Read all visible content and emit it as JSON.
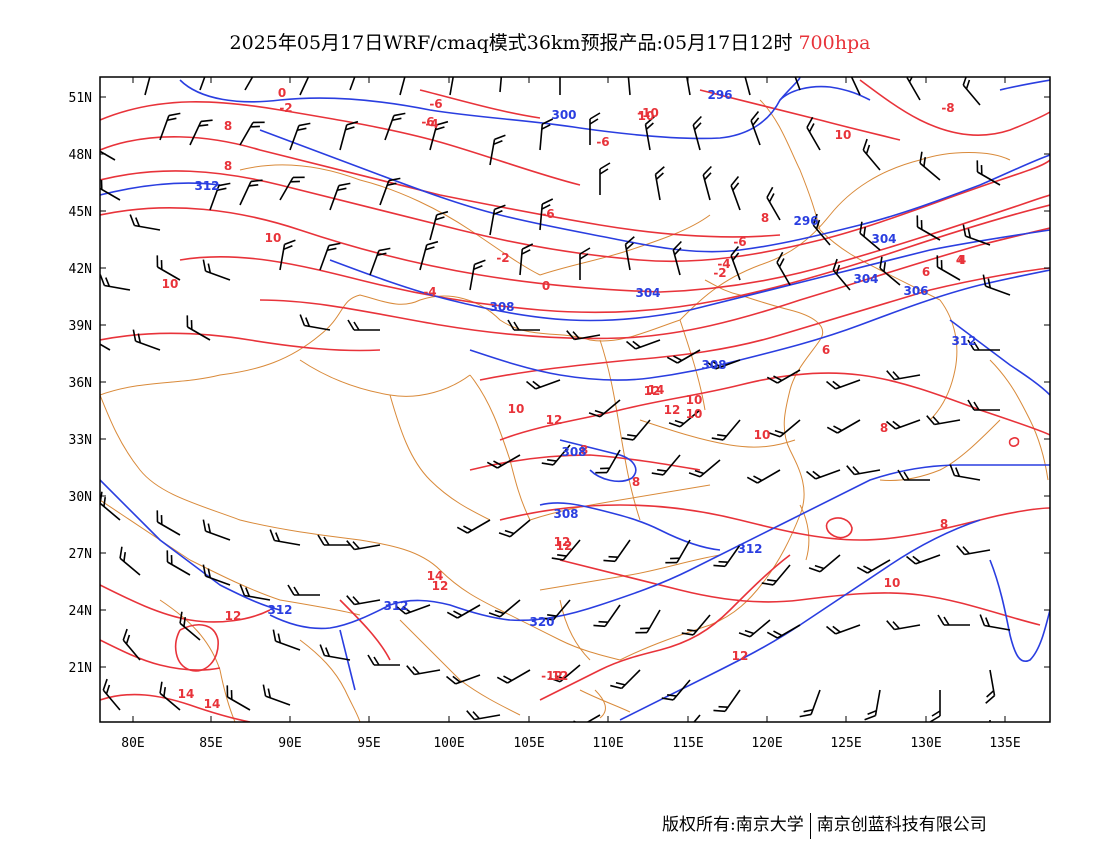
{
  "title": {
    "main": "2025年05月17日WRF/cmaq模式36km预报产品:05月17日12时",
    "level": "700hpa"
  },
  "axes": {
    "lat_labels": [
      "51N",
      "48N",
      "45N",
      "42N",
      "39N",
      "36N",
      "33N",
      "30N",
      "27N",
      "24N",
      "21N"
    ],
    "lon_labels": [
      "80E",
      "85E",
      "90E",
      "95E",
      "100E",
      "105E",
      "110E",
      "115E",
      "120E",
      "125E",
      "130E",
      "135E"
    ]
  },
  "temperature_labels": [
    "0",
    "-2",
    "-4",
    "-6",
    "-10",
    "10",
    "-8",
    "-6",
    "8",
    "-6",
    "-2",
    "-4",
    "-2",
    "0",
    "-4",
    "-6",
    "4",
    "6",
    "8",
    "10",
    "10",
    "12",
    "14",
    "12",
    "10",
    "8",
    "12",
    "10",
    "8",
    "10",
    "6",
    "8",
    "4",
    "-6",
    "10",
    "8",
    "10",
    "12",
    "12",
    "14",
    "12",
    "12",
    "8",
    "12",
    "-12",
    "14",
    "14",
    "12",
    "10"
  ],
  "height_labels": [
    "296",
    "300",
    "296",
    "312",
    "304",
    "304",
    "308",
    "304",
    "306",
    "308",
    "312",
    "308",
    "308",
    "312",
    "312",
    "312",
    "320"
  ],
  "colors": {
    "temperature": "#e8333a",
    "height": "#2a3ee0",
    "borders": "#d98a3a",
    "wind": "#000000"
  },
  "footer": {
    "left": "版权所有:南京大学",
    "right": "南京创蓝科技有限公司"
  }
}
